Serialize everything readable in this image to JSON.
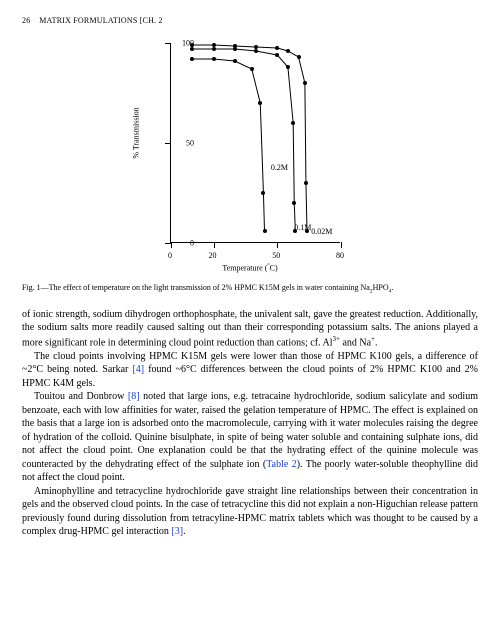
{
  "header": {
    "page_number": "26",
    "running_title": "MATRIX FORMULATIONS [CH. 2"
  },
  "chart": {
    "type": "line",
    "ylabel": "% Transmission",
    "xlabel_prefix": "Temperature (",
    "xlabel_unit": "°",
    "xlabel_suffix": "C)",
    "xlim": [
      0,
      80
    ],
    "ylim": [
      0,
      100
    ],
    "xticks": [
      0,
      20,
      50,
      80
    ],
    "yticks": [
      0,
      50,
      100
    ],
    "background_color": "#ffffff",
    "axis_color": "#000000",
    "line_color": "#000000",
    "line_width": 1,
    "marker_color": "#000000",
    "marker_size": 4,
    "label_fontsize": 8,
    "tick_fontsize": 8,
    "series": [
      {
        "name": "0.02M",
        "label": "0.02M",
        "label_pos_x": 66,
        "label_pos_y": 8,
        "x": [
          10,
          20,
          30,
          40,
          50,
          55,
          60,
          63,
          63.5,
          64
        ],
        "y": [
          99,
          99,
          98.5,
          98,
          97.5,
          96,
          93,
          80,
          30,
          6
        ]
      },
      {
        "name": "0.1M",
        "label": "0.1M",
        "label_pos_x": 58,
        "label_pos_y": 10,
        "x": [
          10,
          20,
          30,
          40,
          50,
          55,
          57.5,
          58,
          58.5
        ],
        "y": [
          97,
          97,
          97,
          96,
          94,
          88,
          60,
          20,
          6
        ]
      },
      {
        "name": "0.2M",
        "label": "0.2M",
        "label_pos_x": 47,
        "label_pos_y": 40,
        "x": [
          10,
          20,
          30,
          38,
          42,
          43.5,
          44
        ],
        "y": [
          92,
          92,
          91,
          87,
          70,
          25,
          6
        ]
      }
    ]
  },
  "caption": {
    "prefix": "Fig. 1—The effect of temperature on the light transmission of 2% HPMC K15M gels in water containing Na",
    "sub": "2",
    "mid": "HPO",
    "sub2": "4",
    "suffix": "."
  },
  "paragraphs": {
    "p1a": "of ionic strength, sodium dihydrogen orthophosphate, the univalent salt, gave the greatest reduction. Additionally, the sodium salts more readily caused salting out than their corresponding potassium salts. The anions played a more significant role in determining cloud point reduction than cations; cf. Al",
    "p1_sup1": "3+",
    "p1b": " and Na",
    "p1_sup2": "+",
    "p1c": ".",
    "p2a": "The cloud points involving HPMC K15M gels were lower than those of HPMC K100 gels, a difference of ~2°C being noted. Sarkar ",
    "p2_ref1": "[4]",
    "p2b": " found ~6°C differences between the cloud points of 2% HPMC K100 and 2% HPMC K4M gels.",
    "p3a": "Touitou and Donbrow ",
    "p3_ref1": "[8]",
    "p3b": " noted that large ions, e.g. tetracaine hydrochloride, sodium salicylate and sodium benzoate, each with low affinities for water, raised the gelation temperature of HPMC. The effect is explained on the basis that a large ion is adsorbed onto the macromolecule, carrying with it water molecules raising the degree of hydration of the colloid. Quinine bisulphate, in spite of being water soluble and containing sulphate ions, did not affect the cloud point. One explanation could  be that the hydrating effect of the quinine molecule was counteracted by the dehydrating effect of the sulphate ion (",
    "p3_ref2": "Table 2",
    "p3c": "). The poorly water-soluble theophylline did not affect the cloud point.",
    "p4a": "Aminophylline and tetracycline hydrochloride gave straight line relationships between their concentration in gels and the observed cloud points. In the case of tetracycline this did not explain a non-Higuchian release pattern previously found during dissolution from tetracyline-HPMC matrix tablets which was thought to be caused by a complex drug-HPMC gel interaction ",
    "p4_ref1": "[3]",
    "p4b": "."
  }
}
